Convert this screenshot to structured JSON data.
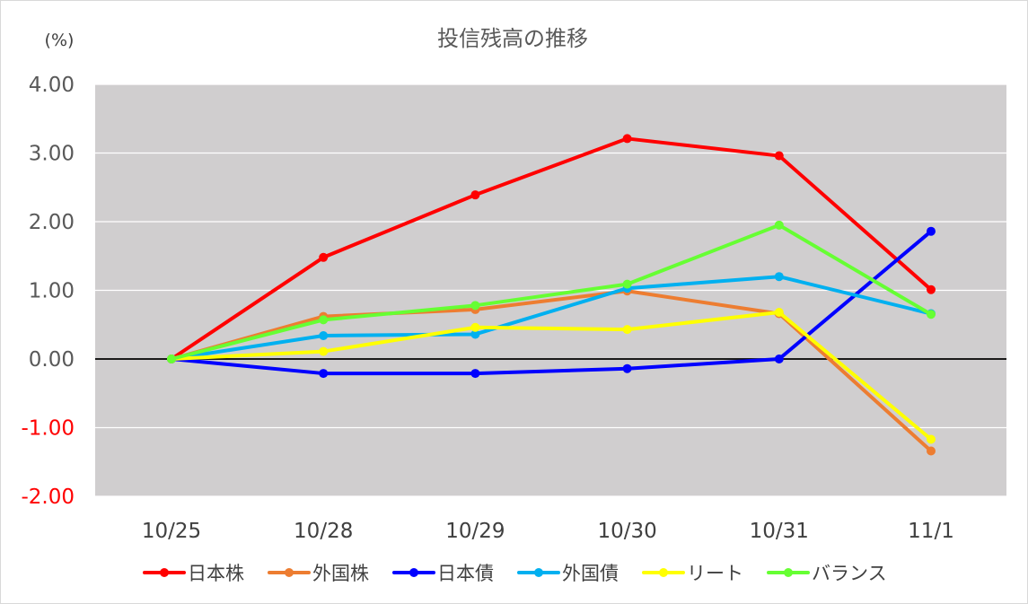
{
  "chart_data": {
    "type": "line",
    "title": "投信残高の推移",
    "unit_label": "(%)",
    "categories": [
      "10/25",
      "10/28",
      "10/29",
      "10/30",
      "10/31",
      "11/1"
    ],
    "ylim": [
      -2.0,
      4.0
    ],
    "yticks": [
      4.0,
      3.0,
      2.0,
      1.0,
      0.0,
      -1.0,
      -2.0
    ],
    "ytick_labels": [
      "4.00",
      "3.00",
      "2.00",
      "1.00",
      "0.00",
      "-1.00",
      "-2.00"
    ],
    "negative_tick_color": "#ff0000",
    "positive_tick_color": "#595959",
    "plot_background": "#d0cecf",
    "grid": true,
    "grid_color": "#ffffff",
    "zero_line_color": "#000000",
    "legend_position": "bottom",
    "series": [
      {
        "name": "日本株",
        "color": "#ff0000",
        "values": [
          0.0,
          1.48,
          2.39,
          3.21,
          2.96,
          1.01
        ]
      },
      {
        "name": "外国株",
        "color": "#ed7d31",
        "values": [
          0.0,
          0.62,
          0.72,
          0.99,
          0.66,
          -1.34
        ]
      },
      {
        "name": "日本債",
        "color": "#0000ff",
        "values": [
          0.0,
          -0.21,
          -0.21,
          -0.14,
          0.0,
          1.86
        ]
      },
      {
        "name": "外国債",
        "color": "#00b0f0",
        "values": [
          0.0,
          0.34,
          0.36,
          1.03,
          1.2,
          0.66
        ]
      },
      {
        "name": "リート",
        "color": "#ffff00",
        "values": [
          0.0,
          0.11,
          0.46,
          0.43,
          0.68,
          -1.17
        ]
      },
      {
        "name": "バランス",
        "color": "#66ff33",
        "values": [
          0.0,
          0.57,
          0.78,
          1.09,
          1.95,
          0.65
        ]
      }
    ]
  }
}
